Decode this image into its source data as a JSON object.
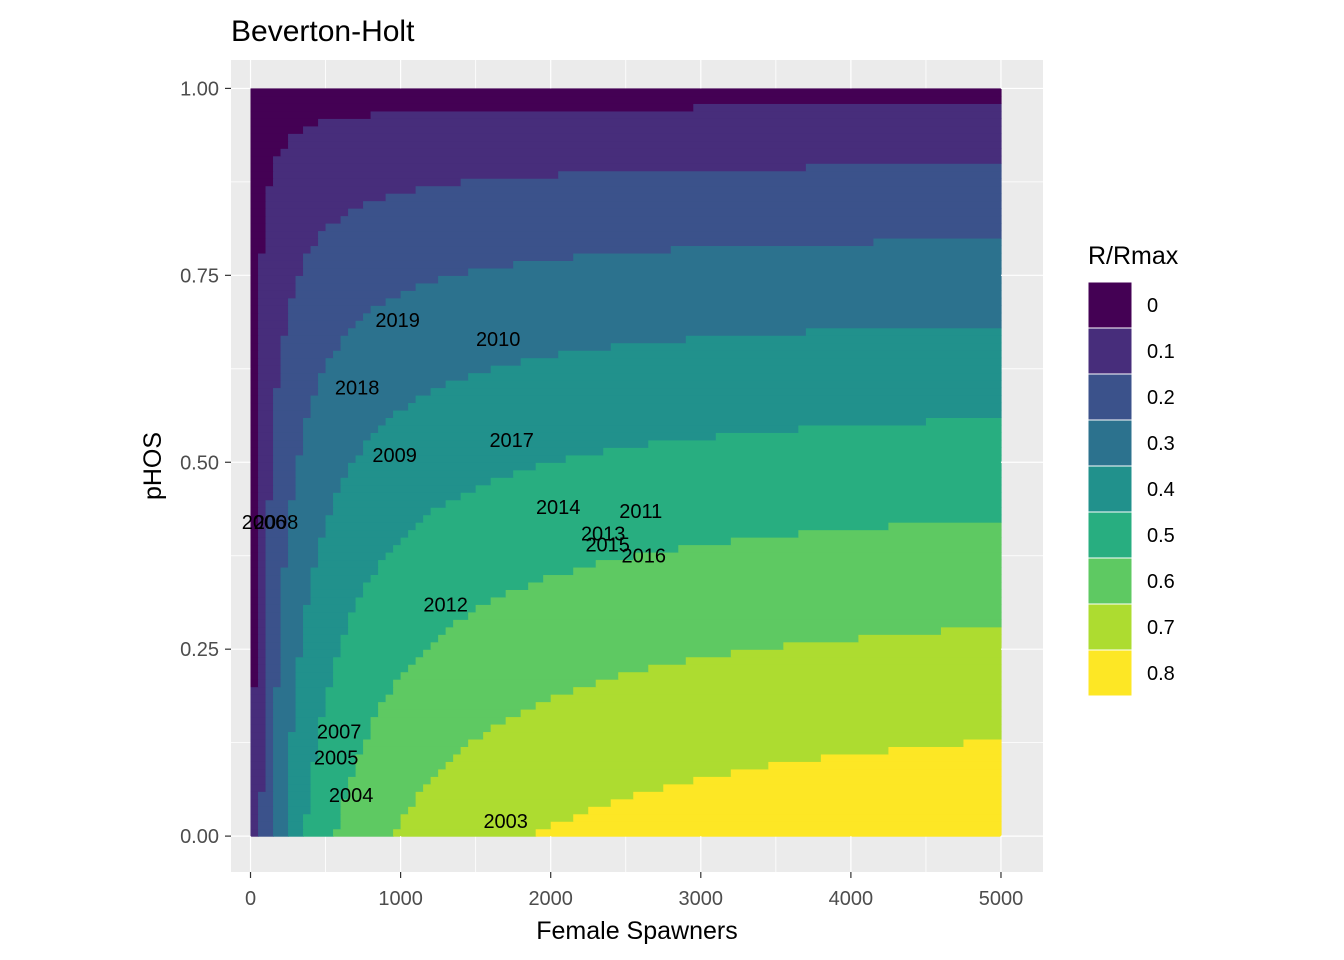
{
  "chart_data": {
    "type": "heatmap",
    "title": "Beverton-Holt",
    "xlabel": "Female Spawners",
    "ylabel": "pHOS",
    "xlim": [
      -130,
      5280
    ],
    "ylim": [
      -0.048,
      1.038
    ],
    "x_ticks": [
      0,
      1000,
      2000,
      3000,
      4000,
      5000
    ],
    "x_tick_labels": [
      "0",
      "1000",
      "2000",
      "3000",
      "4000",
      "5000"
    ],
    "y_ticks": [
      0.0,
      0.25,
      0.5,
      0.75,
      1.0
    ],
    "y_tick_labels": [
      "0.00",
      "0.25",
      "0.50",
      "0.75",
      "1.00"
    ],
    "grid": true,
    "legend": {
      "title": "R/Rmax",
      "position": "right",
      "entries": [
        "0",
        "0.1",
        "0.2",
        "0.3",
        "0.4",
        "0.5",
        "0.6",
        "0.7",
        "0.8"
      ],
      "colors": [
        "#440154",
        "#472d7b",
        "#3b528b",
        "#2c728e",
        "#21918c",
        "#28ae80",
        "#5ec962",
        "#addc30",
        "#fde725"
      ]
    },
    "surface": {
      "x_range": [
        0,
        5000
      ],
      "y_range": [
        0,
        1
      ],
      "model": "R/Rmax = a*S/(b+S)*(1-pHOS)^g",
      "a": 0.89,
      "b": 350,
      "g": 0.75
    },
    "points": [
      {
        "label": "2003",
        "x": 1700,
        "y": 0.02
      },
      {
        "label": "2004",
        "x": 670,
        "y": 0.055
      },
      {
        "label": "2005",
        "x": 570,
        "y": 0.105
      },
      {
        "label": "2006",
        "x": 90,
        "y": 0.42
      },
      {
        "label": "2007",
        "x": 590,
        "y": 0.14
      },
      {
        "label": "2008",
        "x": 170,
        "y": 0.42
      },
      {
        "label": "2009",
        "x": 960,
        "y": 0.51
      },
      {
        "label": "2010",
        "x": 1650,
        "y": 0.665
      },
      {
        "label": "2011",
        "x": 2600,
        "y": 0.435
      },
      {
        "label": "2012",
        "x": 1300,
        "y": 0.31
      },
      {
        "label": "2013",
        "x": 2350,
        "y": 0.405
      },
      {
        "label": "2014",
        "x": 2050,
        "y": 0.44
      },
      {
        "label": "2015",
        "x": 2380,
        "y": 0.39
      },
      {
        "label": "2016",
        "x": 2620,
        "y": 0.375
      },
      {
        "label": "2017",
        "x": 1740,
        "y": 0.53
      },
      {
        "label": "2018",
        "x": 710,
        "y": 0.6
      },
      {
        "label": "2019",
        "x": 980,
        "y": 0.69
      }
    ]
  }
}
